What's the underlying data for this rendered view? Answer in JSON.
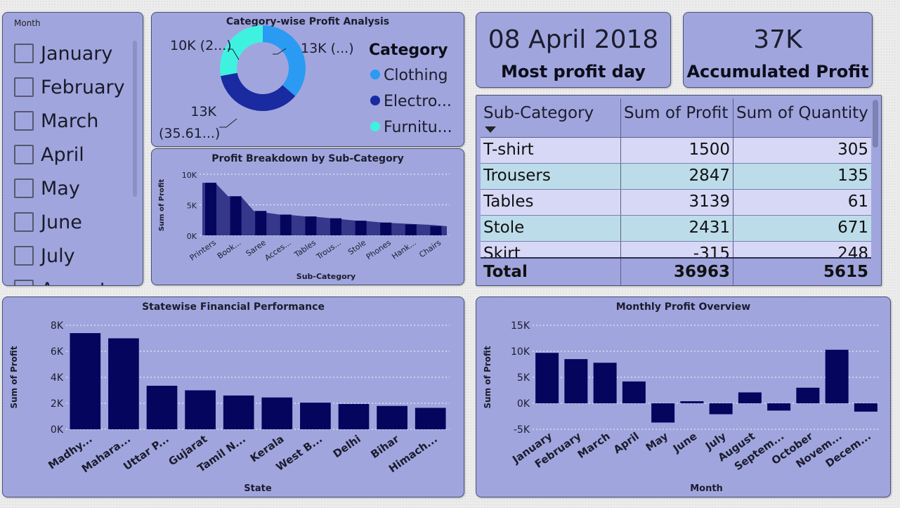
{
  "slicer": {
    "title": "Month",
    "items": [
      "January",
      "February",
      "March",
      "April",
      "May",
      "June",
      "July",
      "August"
    ]
  },
  "kpi": {
    "most_profit_day": {
      "value": "08 April 2018",
      "label": "Most profit day"
    },
    "accumulated_profit": {
      "value": "37K",
      "label": "Accumulated Profit"
    }
  },
  "table": {
    "headers": [
      "Sub-Category",
      "Sum of Profit",
      "Sum of Quantity"
    ],
    "rows": [
      [
        "T-shirt",
        "1500",
        "305"
      ],
      [
        "Trousers",
        "2847",
        "135"
      ],
      [
        "Tables",
        "3139",
        "61"
      ],
      [
        "Stole",
        "2431",
        "671"
      ],
      [
        "Skirt",
        "-315",
        "248"
      ]
    ],
    "total": [
      "Total",
      "36963",
      "5615"
    ]
  },
  "colors": {
    "panel_bg": "#a0a6dd",
    "bar": "#05055e",
    "clothing": "#2b9af3",
    "electronics": "#1a2aa0",
    "furniture": "#3ff2e0",
    "row_odd": "#d6d8f6",
    "row_even": "#bcdcea"
  },
  "chart_data": [
    {
      "id": "donut",
      "type": "pie",
      "title": "Category-wise Profit Analysis",
      "legend_title": "Category",
      "legend": [
        "Clothing",
        "Electro...",
        "Furnitu..."
      ],
      "values": [
        13.4,
        13.2,
        10.3
      ],
      "labels": [
        "13K (...)",
        "13K (35.61...)",
        "10K (2...)"
      ],
      "colors": [
        "#2b9af3",
        "#1a2aa0",
        "#3ff2e0"
      ]
    },
    {
      "id": "subcat",
      "type": "area",
      "title": "Profit Breakdown by Sub-Category",
      "xlabel": "Sub-Category",
      "ylabel": "Sum of Profit",
      "ylim": [
        0,
        10000
      ],
      "yticks": [
        "0K",
        "5K",
        "10K"
      ],
      "categories": [
        "Printers",
        "Book...",
        "Saree",
        "Acces...",
        "Tables",
        "Trous...",
        "Stole",
        "Phones",
        "Hank...",
        "Chairs"
      ],
      "values": [
        8600,
        6400,
        4000,
        3400,
        3100,
        2800,
        2400,
        2100,
        1800,
        1500
      ],
      "area_values": [
        8600,
        8600,
        6400,
        6400,
        4000,
        3700,
        3400,
        3300,
        3100,
        3000,
        2800,
        2600,
        2400,
        2300,
        2100,
        2000,
        1900,
        1800,
        1700,
        1500
      ]
    },
    {
      "id": "state",
      "type": "bar",
      "title": "Statewise Financial Performance",
      "xlabel": "State",
      "ylabel": "Sum of Profit",
      "ylim": [
        0,
        8000
      ],
      "yticks": [
        "0K",
        "2K",
        "4K",
        "6K",
        "8K"
      ],
      "categories": [
        "Madhy...",
        "Mahara...",
        "Uttar P...",
        "Gujarat",
        "Tamil N...",
        "Kerala",
        "West B...",
        "Delhi",
        "Bihar",
        "Himach..."
      ],
      "values": [
        7400,
        7000,
        3350,
        3000,
        2600,
        2450,
        2050,
        1950,
        1800,
        1650
      ]
    },
    {
      "id": "monthly",
      "type": "bar",
      "title": "Monthly Profit Overview",
      "xlabel": "Month",
      "ylabel": "Sum of Profit",
      "ylim": [
        -5000,
        15000
      ],
      "yticks": [
        "-5K",
        "0K",
        "5K",
        "10K",
        "15K"
      ],
      "categories": [
        "January",
        "February",
        "March",
        "April",
        "May",
        "June",
        "July",
        "August",
        "Septem...",
        "October",
        "Novem...",
        "Decem..."
      ],
      "values": [
        9700,
        8500,
        7800,
        4200,
        -3700,
        400,
        -2100,
        2100,
        -1400,
        3000,
        10300,
        -1600
      ]
    }
  ]
}
